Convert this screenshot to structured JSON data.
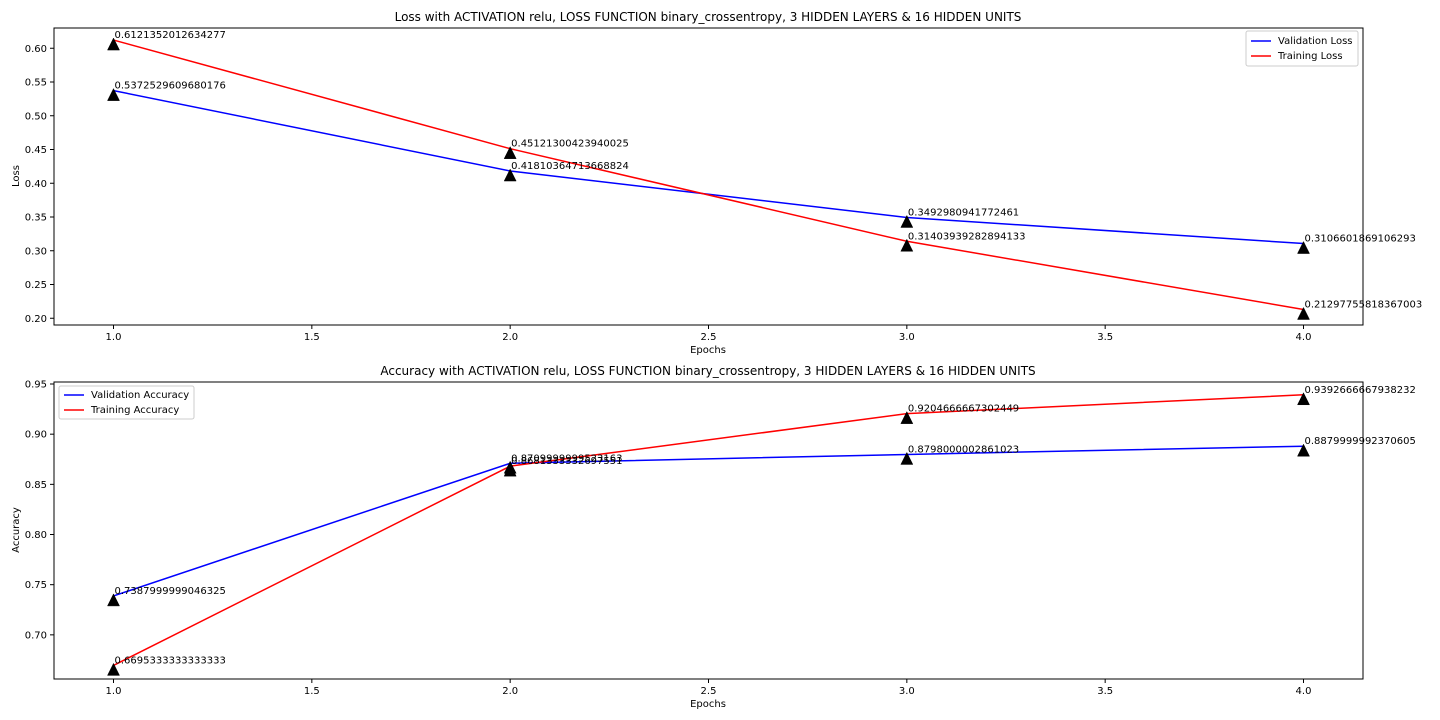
{
  "chart_data": [
    {
      "type": "line",
      "title": "Loss with ACTIVATION relu, LOSS FUNCTION binary_crossentropy, 3 HIDDEN LAYERS & 16 HIDDEN UNITS",
      "xlabel": "Epochs",
      "ylabel": "Loss",
      "x": [
        1.0,
        2.0,
        3.0,
        4.0
      ],
      "xlim": [
        0.85,
        4.15
      ],
      "ylim": [
        0.19,
        0.63
      ],
      "xticks": [
        1.0,
        1.5,
        2.0,
        2.5,
        3.0,
        3.5,
        4.0
      ],
      "yticks": [
        0.2,
        0.25,
        0.3,
        0.35,
        0.4,
        0.45,
        0.5,
        0.55,
        0.6
      ],
      "xtick_labels": [
        "1.0",
        "1.5",
        "2.0",
        "2.5",
        "3.0",
        "3.5",
        "4.0"
      ],
      "ytick_labels": [
        "0.20",
        "0.25",
        "0.30",
        "0.35",
        "0.40",
        "0.45",
        "0.50",
        "0.55",
        "0.60"
      ],
      "grid": false,
      "legend_position": "top-right",
      "series": [
        {
          "name": "Validation Loss",
          "color": "#0000ff",
          "values": [
            0.5372529609680176,
            0.41810364713668824,
            0.3492980941772461,
            0.3106601869106293
          ],
          "labels": [
            "0.5372529609680176",
            "0.41810364713668824",
            "0.3492980941772461",
            "0.3106601869106293"
          ]
        },
        {
          "name": "Training Loss",
          "color": "#ff0000",
          "values": [
            0.6121352012634277,
            0.45121300423940025,
            0.31403939282894133,
            0.21297755818367003
          ],
          "labels": [
            "0.6121352012634277",
            "0.45121300423940025",
            "0.31403939282894133",
            "0.21297755818367003"
          ]
        }
      ]
    },
    {
      "type": "line",
      "title": "Accuracy with ACTIVATION relu, LOSS FUNCTION binary_crossentropy, 3 HIDDEN LAYERS & 16 HIDDEN UNITS",
      "xlabel": "Epochs",
      "ylabel": "Accuracy",
      "x": [
        1.0,
        2.0,
        3.0,
        4.0
      ],
      "xlim": [
        0.85,
        4.15
      ],
      "ylim": [
        0.656,
        0.952
      ],
      "xticks": [
        1.0,
        1.5,
        2.0,
        2.5,
        3.0,
        3.5,
        4.0
      ],
      "yticks": [
        0.7,
        0.75,
        0.8,
        0.85,
        0.9,
        0.95
      ],
      "xtick_labels": [
        "1.0",
        "1.5",
        "2.0",
        "2.5",
        "3.0",
        "3.5",
        "4.0"
      ],
      "ytick_labels": [
        "0.70",
        "0.75",
        "0.80",
        "0.85",
        "0.90",
        "0.95"
      ],
      "grid": false,
      "legend_position": "top-left",
      "series": [
        {
          "name": "Validation Accuracy",
          "color": "#0000ff",
          "values": [
            0.7387999999046325,
            0.8709999999523163,
            0.8798000002861023,
            0.8879999992370605
          ],
          "labels": [
            "0.7387999999046325",
            "0.8709999999523163",
            "0.8798000002861023",
            "0.8879999992370605"
          ]
        },
        {
          "name": "Training Accuracy",
          "color": "#ff0000",
          "values": [
            0.6695333333333333,
            0.8681333332697551,
            0.9204666667302449,
            0.9392666667938232
          ],
          "labels": [
            "0.6695333333333333",
            "0.8681333332697551",
            "0.9204666667302449",
            "0.9392666667938232"
          ]
        }
      ]
    }
  ]
}
